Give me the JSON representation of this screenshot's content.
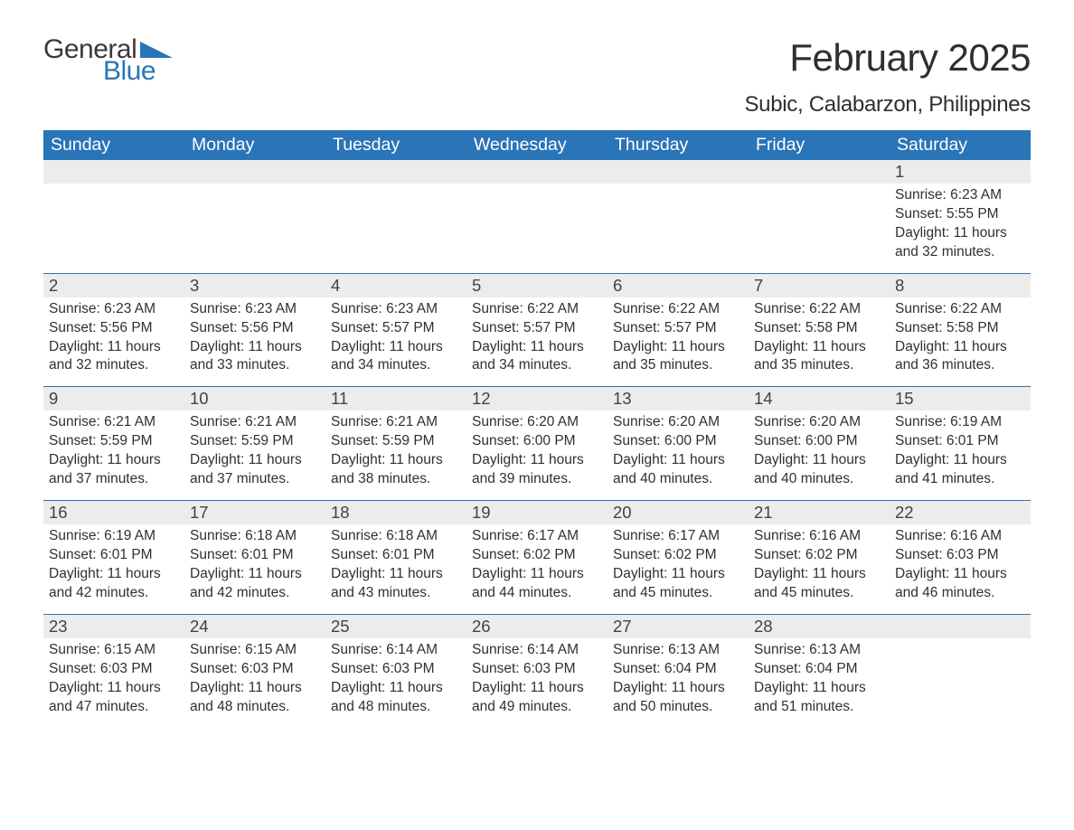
{
  "logo": {
    "text1": "General",
    "text2": "Blue",
    "color_general": "#3a3a3a",
    "color_blue": "#2a74b8",
    "flag_color": "#2a74b8"
  },
  "title": "February 2025",
  "location": "Subic, Calabarzon, Philippines",
  "header_bg": "#2a74b8",
  "header_fg": "#ffffff",
  "daynum_bg": "#ececec",
  "text_color": "#303030",
  "weekdays": [
    "Sunday",
    "Monday",
    "Tuesday",
    "Wednesday",
    "Thursday",
    "Friday",
    "Saturday"
  ],
  "weeks": [
    {
      "days": [
        null,
        null,
        null,
        null,
        null,
        null,
        {
          "n": "1",
          "sunrise": "Sunrise: 6:23 AM",
          "sunset": "Sunset: 5:55 PM",
          "daylight": "Daylight: 11 hours and 32 minutes."
        }
      ]
    },
    {
      "days": [
        {
          "n": "2",
          "sunrise": "Sunrise: 6:23 AM",
          "sunset": "Sunset: 5:56 PM",
          "daylight": "Daylight: 11 hours and 32 minutes."
        },
        {
          "n": "3",
          "sunrise": "Sunrise: 6:23 AM",
          "sunset": "Sunset: 5:56 PM",
          "daylight": "Daylight: 11 hours and 33 minutes."
        },
        {
          "n": "4",
          "sunrise": "Sunrise: 6:23 AM",
          "sunset": "Sunset: 5:57 PM",
          "daylight": "Daylight: 11 hours and 34 minutes."
        },
        {
          "n": "5",
          "sunrise": "Sunrise: 6:22 AM",
          "sunset": "Sunset: 5:57 PM",
          "daylight": "Daylight: 11 hours and 34 minutes."
        },
        {
          "n": "6",
          "sunrise": "Sunrise: 6:22 AM",
          "sunset": "Sunset: 5:57 PM",
          "daylight": "Daylight: 11 hours and 35 minutes."
        },
        {
          "n": "7",
          "sunrise": "Sunrise: 6:22 AM",
          "sunset": "Sunset: 5:58 PM",
          "daylight": "Daylight: 11 hours and 35 minutes."
        },
        {
          "n": "8",
          "sunrise": "Sunrise: 6:22 AM",
          "sunset": "Sunset: 5:58 PM",
          "daylight": "Daylight: 11 hours and 36 minutes."
        }
      ]
    },
    {
      "days": [
        {
          "n": "9",
          "sunrise": "Sunrise: 6:21 AM",
          "sunset": "Sunset: 5:59 PM",
          "daylight": "Daylight: 11 hours and 37 minutes."
        },
        {
          "n": "10",
          "sunrise": "Sunrise: 6:21 AM",
          "sunset": "Sunset: 5:59 PM",
          "daylight": "Daylight: 11 hours and 37 minutes."
        },
        {
          "n": "11",
          "sunrise": "Sunrise: 6:21 AM",
          "sunset": "Sunset: 5:59 PM",
          "daylight": "Daylight: 11 hours and 38 minutes."
        },
        {
          "n": "12",
          "sunrise": "Sunrise: 6:20 AM",
          "sunset": "Sunset: 6:00 PM",
          "daylight": "Daylight: 11 hours and 39 minutes."
        },
        {
          "n": "13",
          "sunrise": "Sunrise: 6:20 AM",
          "sunset": "Sunset: 6:00 PM",
          "daylight": "Daylight: 11 hours and 40 minutes."
        },
        {
          "n": "14",
          "sunrise": "Sunrise: 6:20 AM",
          "sunset": "Sunset: 6:00 PM",
          "daylight": "Daylight: 11 hours and 40 minutes."
        },
        {
          "n": "15",
          "sunrise": "Sunrise: 6:19 AM",
          "sunset": "Sunset: 6:01 PM",
          "daylight": "Daylight: 11 hours and 41 minutes."
        }
      ]
    },
    {
      "days": [
        {
          "n": "16",
          "sunrise": "Sunrise: 6:19 AM",
          "sunset": "Sunset: 6:01 PM",
          "daylight": "Daylight: 11 hours and 42 minutes."
        },
        {
          "n": "17",
          "sunrise": "Sunrise: 6:18 AM",
          "sunset": "Sunset: 6:01 PM",
          "daylight": "Daylight: 11 hours and 42 minutes."
        },
        {
          "n": "18",
          "sunrise": "Sunrise: 6:18 AM",
          "sunset": "Sunset: 6:01 PM",
          "daylight": "Daylight: 11 hours and 43 minutes."
        },
        {
          "n": "19",
          "sunrise": "Sunrise: 6:17 AM",
          "sunset": "Sunset: 6:02 PM",
          "daylight": "Daylight: 11 hours and 44 minutes."
        },
        {
          "n": "20",
          "sunrise": "Sunrise: 6:17 AM",
          "sunset": "Sunset: 6:02 PM",
          "daylight": "Daylight: 11 hours and 45 minutes."
        },
        {
          "n": "21",
          "sunrise": "Sunrise: 6:16 AM",
          "sunset": "Sunset: 6:02 PM",
          "daylight": "Daylight: 11 hours and 45 minutes."
        },
        {
          "n": "22",
          "sunrise": "Sunrise: 6:16 AM",
          "sunset": "Sunset: 6:03 PM",
          "daylight": "Daylight: 11 hours and 46 minutes."
        }
      ]
    },
    {
      "days": [
        {
          "n": "23",
          "sunrise": "Sunrise: 6:15 AM",
          "sunset": "Sunset: 6:03 PM",
          "daylight": "Daylight: 11 hours and 47 minutes."
        },
        {
          "n": "24",
          "sunrise": "Sunrise: 6:15 AM",
          "sunset": "Sunset: 6:03 PM",
          "daylight": "Daylight: 11 hours and 48 minutes."
        },
        {
          "n": "25",
          "sunrise": "Sunrise: 6:14 AM",
          "sunset": "Sunset: 6:03 PM",
          "daylight": "Daylight: 11 hours and 48 minutes."
        },
        {
          "n": "26",
          "sunrise": "Sunrise: 6:14 AM",
          "sunset": "Sunset: 6:03 PM",
          "daylight": "Daylight: 11 hours and 49 minutes."
        },
        {
          "n": "27",
          "sunrise": "Sunrise: 6:13 AM",
          "sunset": "Sunset: 6:04 PM",
          "daylight": "Daylight: 11 hours and 50 minutes."
        },
        {
          "n": "28",
          "sunrise": "Sunrise: 6:13 AM",
          "sunset": "Sunset: 6:04 PM",
          "daylight": "Daylight: 11 hours and 51 minutes."
        },
        null
      ]
    }
  ]
}
